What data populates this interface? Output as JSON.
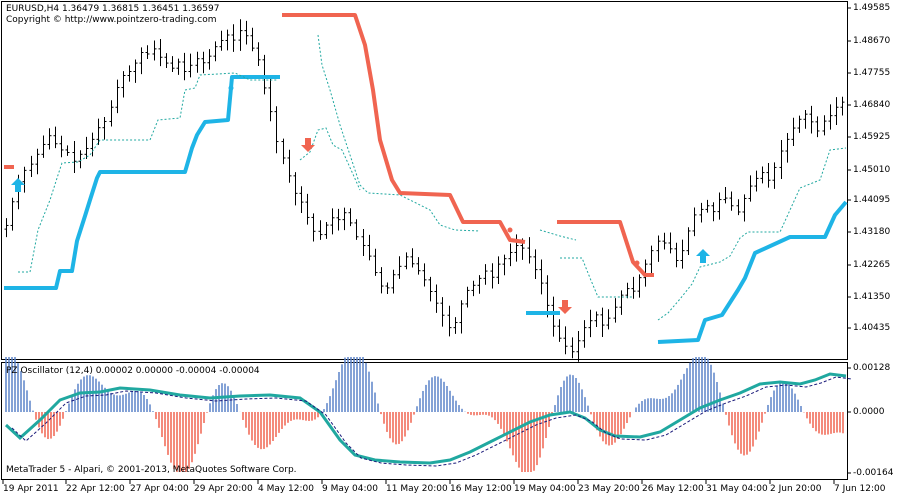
{
  "window": {
    "symbol_line": "EURUSD,H4  1.36479 1.36815 1.36451 1.36597",
    "copyright": "Copyright © http://www.pointzero-trading.com",
    "indicator_line": "PZ Oscillator (12,4) 0.00002 0.00000 -0.00004 -0.00004",
    "footer": "MetaTrader 5 - Alpari, © 2001-2013, MetaQuotes Software Corp."
  },
  "colors": {
    "bull": "#1eb4e6",
    "bear": "#f06450",
    "teal": "#20a8a0",
    "navy": "#1a1a7a",
    "price": "#000000"
  },
  "price_axis": [
    "1.49585",
    "1.48670",
    "1.47755",
    "1.46840",
    "1.45925",
    "1.45010",
    "1.44095",
    "1.43180",
    "1.42265",
    "1.41350",
    "1.40435"
  ],
  "osc_axis": [
    "0.00128",
    "0.0000",
    "-0.00164"
  ],
  "time_axis": [
    "19 Apr 2011",
    "22 Apr 12:00",
    "27 Apr 04:00",
    "29 Apr 20:00",
    "4 May 12:00",
    "9 May 04:00",
    "11 May 20:00",
    "16 May 12:00",
    "19 May 04:00",
    "23 May 20:00",
    "26 May 12:00",
    "31 May 04:00",
    "2 Jun 20:00",
    "7 Jun 12:00"
  ],
  "chart_data": {
    "type": "line",
    "title": "EURUSD,H4",
    "series": [
      {
        "name": "EURUSD",
        "values": [
          1.4367,
          1.4432,
          1.4487,
          1.4518,
          1.4535,
          1.4562,
          1.4589,
          1.4613,
          1.4591,
          1.4574,
          1.4567,
          1.4543,
          1.4562,
          1.4578,
          1.4603,
          1.4635,
          1.4652,
          1.4691,
          1.4745,
          1.4778,
          1.4789,
          1.4812,
          1.4841,
          1.4837,
          1.4851,
          1.4828,
          1.4812,
          1.4798,
          1.4815,
          1.4789,
          1.4806,
          1.4824,
          1.4813,
          1.4831,
          1.4857,
          1.4874,
          1.4889,
          1.4875,
          1.4901,
          1.4887,
          1.4853,
          1.4821,
          1.4744,
          1.4679,
          1.4597,
          1.4552,
          1.4503,
          1.4455,
          1.4431,
          1.4389,
          1.4351,
          1.4342,
          1.4368,
          1.4388,
          1.4383,
          1.4402,
          1.4374,
          1.4336,
          1.4312,
          1.4283,
          1.4238,
          1.4201,
          1.4196,
          1.4232,
          1.4255,
          1.4281,
          1.4262,
          1.4243,
          1.4218,
          1.4186,
          1.4154,
          1.4121,
          1.4087,
          1.4101,
          1.4152,
          1.4189,
          1.4203,
          1.4222,
          1.4242,
          1.4225,
          1.4261,
          1.4276,
          1.4293,
          1.4312,
          1.4305,
          1.4281,
          1.4246,
          1.4209,
          1.4148,
          1.4091,
          1.4058,
          1.4036,
          1.4021,
          1.4051,
          1.4087,
          1.4106,
          1.4122,
          1.4094,
          1.4113,
          1.4143,
          1.4176,
          1.4194,
          1.4187,
          1.4224,
          1.4261,
          1.4298,
          1.4324,
          1.4319,
          1.4303,
          1.4271,
          1.4298,
          1.4352,
          1.4396,
          1.4411,
          1.4421,
          1.4405,
          1.4438,
          1.4442,
          1.4421,
          1.4404,
          1.4441,
          1.4475,
          1.4496,
          1.4512,
          1.4491,
          1.4526,
          1.4571,
          1.4603,
          1.4634,
          1.4658,
          1.4672,
          1.4651,
          1.4626,
          1.4653,
          1.4668,
          1.4691,
          1.4705
        ]
      }
    ],
    "ylim": [
      1.4012,
      1.4963
    ]
  }
}
